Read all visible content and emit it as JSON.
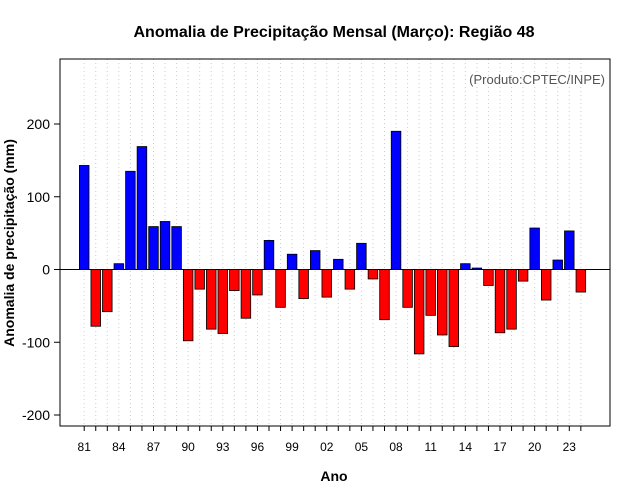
{
  "chart_data": {
    "type": "bar",
    "title": "Anomalia de Precipitação Mensal (Março): Região 48",
    "xlabel": "Ano",
    "ylabel": "Anomalia de precipitação (mm)",
    "annotation": "(Produto:CPTEC/INPE)",
    "ylim": [
      -215,
      290
    ],
    "yticks": [
      -200,
      -100,
      0,
      100,
      200
    ],
    "grid": "vertical dotted",
    "colors": {
      "positive": "#0000FF",
      "negative": "#FF0000",
      "outline": "#000000",
      "grid": "#cccccc"
    },
    "categories": [
      "81",
      "82",
      "83",
      "84",
      "85",
      "86",
      "87",
      "88",
      "89",
      "90",
      "91",
      "92",
      "93",
      "94",
      "95",
      "96",
      "97",
      "98",
      "99",
      "00",
      "01",
      "02",
      "03",
      "04",
      "05",
      "06",
      "07",
      "08",
      "09",
      "10",
      "11",
      "12",
      "13",
      "14",
      "15",
      "16",
      "17",
      "18",
      "19",
      "20",
      "21",
      "22",
      "23",
      "24"
    ],
    "values": [
      143,
      -78,
      -58,
      8,
      135,
      169,
      59,
      66,
      59,
      -98,
      -27,
      -82,
      -88,
      -29,
      -67,
      -35,
      40,
      -52,
      21,
      -40,
      26,
      -38,
      14,
      -27,
      36,
      -13,
      -69,
      190,
      -52,
      -116,
      -63,
      -90,
      -106,
      8,
      2,
      -22,
      -87,
      -82,
      -16,
      57,
      -42,
      13,
      53,
      -31
    ],
    "xtick_labels": [
      "81",
      "84",
      "87",
      "90",
      "93",
      "96",
      "99",
      "02",
      "05",
      "08",
      "11",
      "14",
      "17",
      "20",
      "23"
    ]
  }
}
